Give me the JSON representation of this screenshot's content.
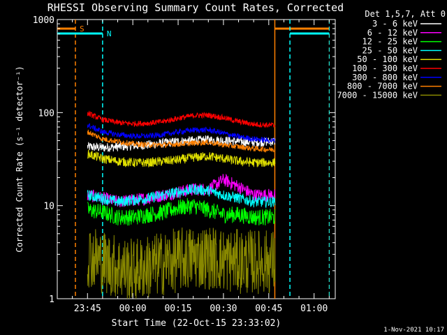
{
  "chart_data": {
    "type": "line",
    "title": "RHESSI Observing Summary Count Rates, Corrected",
    "xlabel": "Start Time (22-Oct-15 23:33:02)",
    "ylabel": "Corrected Count Rate (s⁻¹ detector⁻¹)",
    "ylim": [
      1,
      1000
    ],
    "yscale": "log",
    "xlim": [
      "23:35",
      "01:07"
    ],
    "x_ticks": [
      "23:45",
      "00:00",
      "00:15",
      "00:30",
      "00:45",
      "01:00"
    ],
    "y_ticks": [
      "1",
      "10",
      "100",
      "1000"
    ],
    "legend_title": "Det 1,5,7, Att 0",
    "legend_position": "top-right",
    "footer": "1-Nov-2021 10:17",
    "data_gap": [
      "23:45",
      "00:47"
    ],
    "markers": [
      {
        "label": "S",
        "color": "#ff8000",
        "time": "23:41",
        "bar": [
          "23:35",
          "23:41"
        ],
        "line": "dashed"
      },
      {
        "label": "N",
        "color": "#00ffff",
        "time": "23:50",
        "bar": [
          "23:35",
          "23:50"
        ],
        "line": "dashed"
      },
      {
        "label": "",
        "color": "#ff8000",
        "time": "00:47",
        "bar": [
          "00:47",
          "01:05"
        ],
        "line": "solid"
      },
      {
        "label": "",
        "color": "#00ffff",
        "time": "00:52",
        "bar": [
          "00:52",
          "01:05"
        ],
        "line": "dashed"
      }
    ],
    "x_times": [
      "23:45",
      "23:50",
      "23:55",
      "00:00",
      "00:05",
      "00:10",
      "00:15",
      "00:20",
      "00:25",
      "00:30",
      "00:35",
      "00:40",
      "00:46"
    ],
    "series": [
      {
        "name": "3 - 6 keV",
        "color": "#ffffff",
        "values": [
          43,
          42,
          43,
          44,
          45,
          47,
          49,
          50,
          51,
          50,
          49,
          48,
          49
        ],
        "noise": 0.05
      },
      {
        "name": "6 - 12 keV",
        "color": "#ff00ff",
        "values": [
          13,
          12,
          11,
          11.5,
          12,
          13,
          14,
          15,
          15,
          19,
          16,
          13,
          13
        ],
        "noise": 0.07
      },
      {
        "name": "12 - 25 keV",
        "color": "#00ff00",
        "values": [
          9,
          8.5,
          7.5,
          7.5,
          8,
          8.5,
          9.5,
          10,
          9,
          8,
          8,
          7.5,
          7.5
        ],
        "noise": 0.09
      },
      {
        "name": "25 - 50 keV",
        "color": "#00ffff",
        "values": [
          13,
          12,
          11,
          11.5,
          12,
          13,
          14,
          15,
          14.5,
          13,
          12,
          11,
          11
        ],
        "noise": 0.06
      },
      {
        "name": "50 - 100 keV",
        "color": "#e0e000",
        "values": [
          36,
          32,
          30,
          29,
          29,
          30,
          31,
          33,
          34,
          32,
          30,
          29,
          29
        ],
        "noise": 0.05
      },
      {
        "name": "100 - 300 keV",
        "color": "#ff0000",
        "values": [
          98,
          84,
          78,
          76,
          77,
          80,
          87,
          93,
          94,
          88,
          80,
          75,
          73
        ],
        "noise": 0.03
      },
      {
        "name": "300 - 800 keV",
        "color": "#0000ff",
        "values": [
          73,
          62,
          58,
          56,
          56,
          58,
          62,
          65,
          65,
          60,
          55,
          52,
          50
        ],
        "noise": 0.03
      },
      {
        "name": "800 - 7000 keV",
        "color": "#ff8000",
        "values": [
          62,
          52,
          49,
          46,
          45,
          45,
          46,
          47,
          48,
          45,
          43,
          41,
          40
        ],
        "noise": 0.03
      },
      {
        "name": "7000 - 15000 keV",
        "color": "#888800",
        "values": [
          3,
          2.5,
          2.2,
          2.0,
          2.2,
          2.4,
          2.6,
          2.8,
          2.8,
          2.6,
          2.5,
          2.5,
          2.5
        ],
        "noise": 0.35
      }
    ]
  }
}
